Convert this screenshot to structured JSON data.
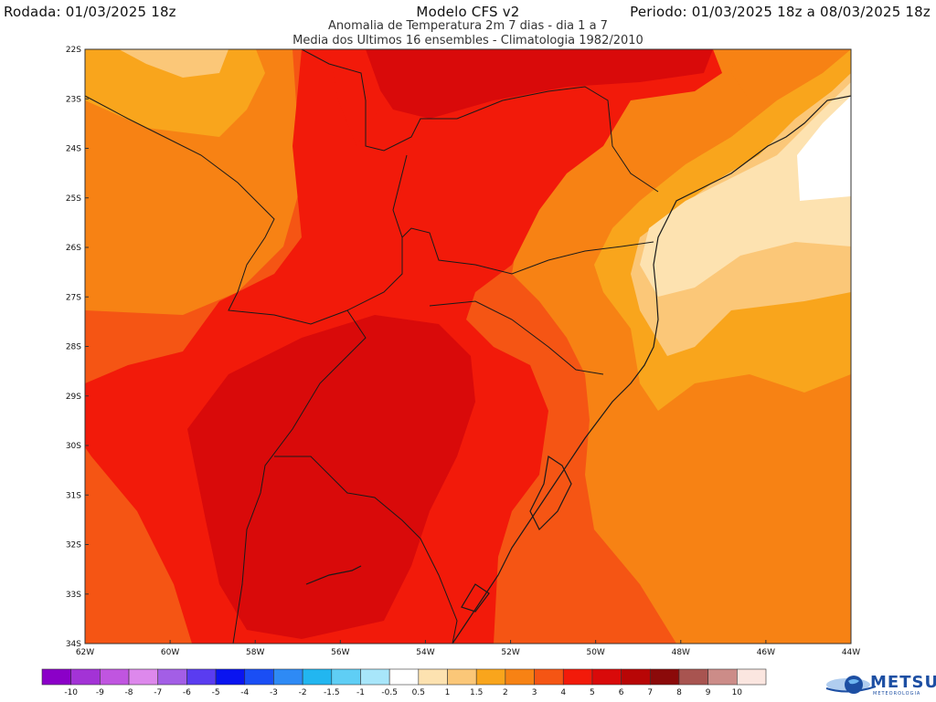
{
  "header": {
    "run_label": "Rodada: 01/03/2025 18z",
    "model": "Modelo CFS v2",
    "period_label": "Periodo: 01/03/2025 18z a 08/03/2025 18z",
    "subtitle1": "Anomalia de Temperatura 2m 7 dias - dia 1 a 7",
    "subtitle2": "Media dos Ultimos 16 ensembles - Climatologia 1982/2010"
  },
  "axes": {
    "lat_labels": [
      "22S",
      "23S",
      "24S",
      "25S",
      "26S",
      "27S",
      "28S",
      "29S",
      "30S",
      "31S",
      "32S",
      "33S",
      "34S"
    ],
    "lon_labels": [
      "62W",
      "60W",
      "58W",
      "56W",
      "54W",
      "52W",
      "50W",
      "48W",
      "46W",
      "44W"
    ],
    "lat_values": [
      -22,
      -23,
      -24,
      -25,
      -26,
      -27,
      -28,
      -29,
      -30,
      -31,
      -32,
      -33,
      -34
    ],
    "lon_values": [
      -62,
      -60,
      -58,
      -56,
      -54,
      -52,
      -50,
      -48,
      -46,
      -44
    ]
  },
  "map_extent": {
    "lon_min": -62,
    "lon_max": -44,
    "lat_min": -34,
    "lat_max": -22
  },
  "colorbar": {
    "labels": [
      "-10",
      "-9",
      "-8",
      "-7",
      "-6",
      "-5",
      "-4",
      "-3",
      "-2",
      "-1.5",
      "-1",
      "-0.5",
      "0.5",
      "1",
      "1.5",
      "2",
      "3",
      "4",
      "5",
      "6",
      "7",
      "8",
      "9",
      "10"
    ],
    "colors": [
      "#8b00c8",
      "#a333d6",
      "#c055e0",
      "#dd88ec",
      "#a35ee6",
      "#5a3cf0",
      "#0a14f0",
      "#1a4ef5",
      "#2e8af5",
      "#22b6f0",
      "#5fcef5",
      "#a8e6fa",
      "#ffffff",
      "#fde2b0",
      "#fbc778",
      "#f9a51c",
      "#f78214",
      "#f55514",
      "#f21a0a",
      "#d90a0a",
      "#b80606",
      "#8b0a0a",
      "#a85450",
      "#cc8c88",
      "#fbe6e0"
    ]
  },
  "legend_colors": {
    "anom_0_5_1": "#fde2b0",
    "anom_1_1_5": "#fbc778",
    "anom_1_5_2": "#f9a51c",
    "anom_2_3": "#f78214",
    "anom_3_4": "#f55514",
    "anom_4_5": "#f21a0a",
    "anom_5_6": "#d90a0a"
  },
  "logo": {
    "text": "METSUL",
    "subtext": "METEOROLOGIA",
    "icon": "globe-logo-icon"
  }
}
